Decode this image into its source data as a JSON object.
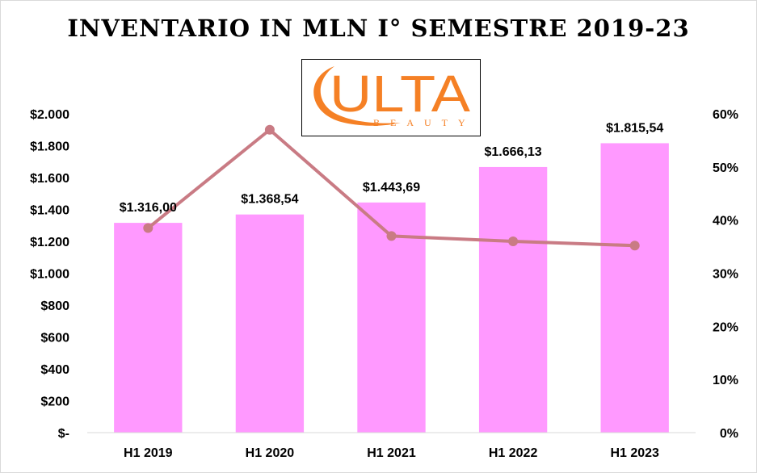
{
  "chart_data": {
    "type": "bar",
    "title": "INVENTARIO IN MLN I° SEMESTRE 2019-23",
    "categories": [
      "H1 2019",
      "H1 2020",
      "H1 2021",
      "H1 2022",
      "H1 2023"
    ],
    "series": [
      {
        "type": "bar",
        "axis": "left",
        "color": "#ff99ff",
        "values": [
          1316.0,
          1368.54,
          1443.69,
          1666.13,
          1815.54
        ],
        "data_labels": [
          "$1.316,00",
          "$1.368,54",
          "$1.443,69",
          "$1.666,13",
          "$1.815,54"
        ]
      },
      {
        "type": "line",
        "axis": "right",
        "color": "#c97b84",
        "values": [
          38.5,
          57.0,
          37.0,
          36.0,
          35.2
        ]
      }
    ],
    "y_left": {
      "min": 0,
      "max": 2000,
      "ticks": [
        0,
        200,
        400,
        600,
        800,
        1000,
        1200,
        1400,
        1600,
        1800,
        2000
      ],
      "tick_labels": [
        "$-",
        "$200",
        "$400",
        "$600",
        "$800",
        "$1.000",
        "$1.200",
        "$1.400",
        "$1.600",
        "$1.800",
        "$2.000"
      ]
    },
    "y_right": {
      "min": 0,
      "max": 60,
      "ticks": [
        0,
        10,
        20,
        30,
        40,
        50,
        60
      ],
      "tick_labels": [
        "0%",
        "10%",
        "20%",
        "30%",
        "40%",
        "50%",
        "60%"
      ]
    },
    "grid": false,
    "legend": "none"
  },
  "logo": {
    "text_main": "ULTA",
    "text_sub": "BEAUTY",
    "color": "#f58025"
  }
}
